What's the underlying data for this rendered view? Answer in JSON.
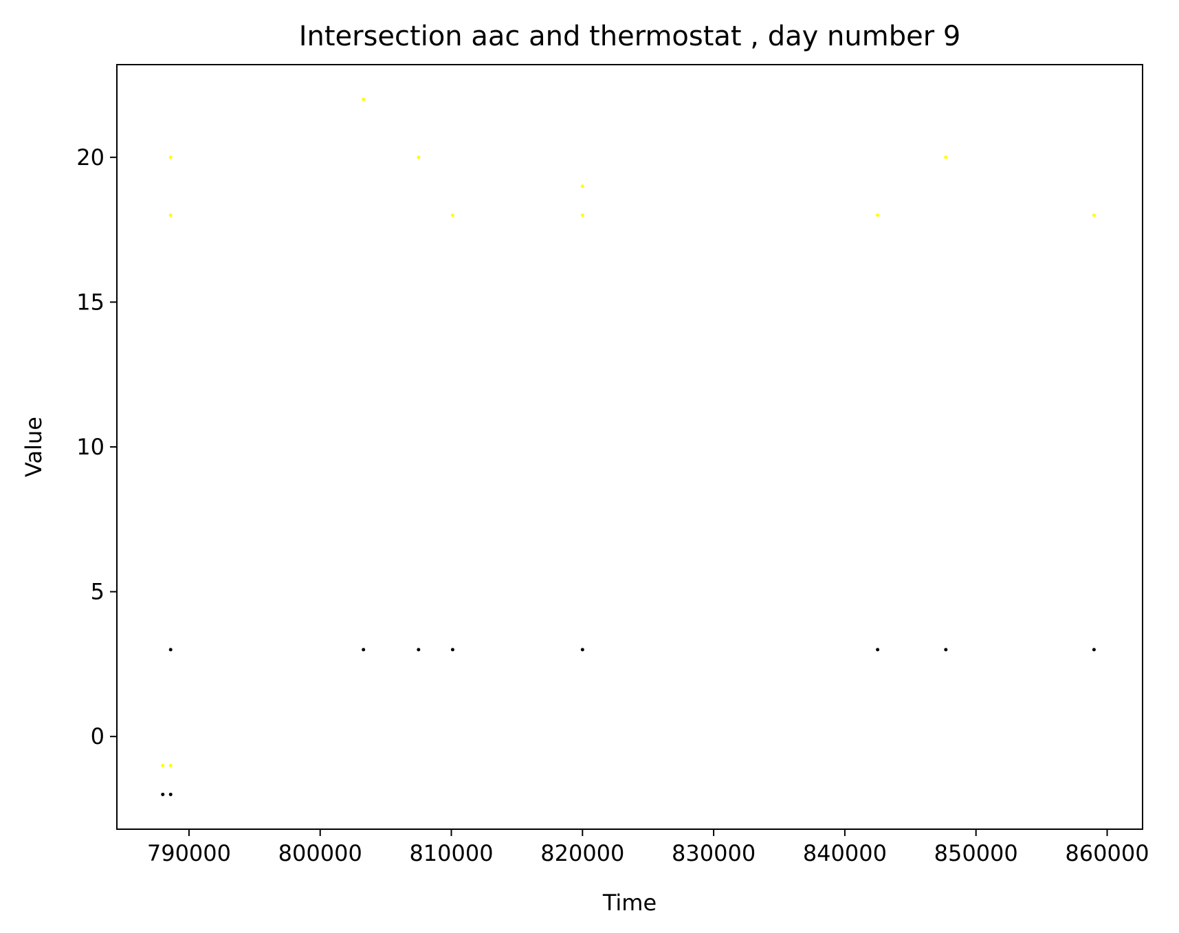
{
  "chart_data": {
    "type": "scatter",
    "title": "Intersection aac and thermostat , day number 9",
    "xlabel": "Time",
    "ylabel": "Value",
    "xlim": [
      784500,
      862700
    ],
    "ylim": [
      -3.2,
      23.2
    ],
    "xticks": [
      790000,
      800000,
      810000,
      820000,
      830000,
      840000,
      850000,
      860000
    ],
    "xtick_labels": [
      "790000",
      "800000",
      "810000",
      "820000",
      "830000",
      "840000",
      "850000",
      "860000"
    ],
    "yticks": [
      0,
      5,
      10,
      15,
      20
    ],
    "ytick_labels": [
      "0",
      "5",
      "10",
      "15",
      "20"
    ],
    "grid": false,
    "series": [
      {
        "color": "#ffff00",
        "points": [
          {
            "x": 788000,
            "y": -1
          },
          {
            "x": 788600,
            "y": -1
          },
          {
            "x": 788600,
            "y": 18
          },
          {
            "x": 788600,
            "y": 20
          },
          {
            "x": 803300,
            "y": 22
          },
          {
            "x": 807500,
            "y": 20
          },
          {
            "x": 810100,
            "y": 18
          },
          {
            "x": 820000,
            "y": 19
          },
          {
            "x": 820000,
            "y": 18
          },
          {
            "x": 842500,
            "y": 18
          },
          {
            "x": 847700,
            "y": 20
          },
          {
            "x": 859000,
            "y": 18
          }
        ]
      },
      {
        "color": "#000000",
        "points": [
          {
            "x": 788000,
            "y": -2
          },
          {
            "x": 788600,
            "y": -2
          },
          {
            "x": 788600,
            "y": 3
          },
          {
            "x": 803300,
            "y": 3
          },
          {
            "x": 807500,
            "y": 3
          },
          {
            "x": 810100,
            "y": 3
          },
          {
            "x": 820000,
            "y": 3
          },
          {
            "x": 842500,
            "y": 3
          },
          {
            "x": 847700,
            "y": 3
          },
          {
            "x": 859000,
            "y": 3
          }
        ]
      }
    ]
  }
}
